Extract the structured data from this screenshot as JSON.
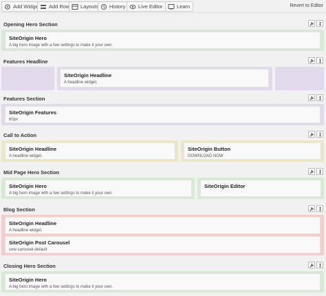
{
  "toolbar": {
    "buttons": [
      {
        "label": "Add Widget",
        "icon": "add-widget-icon"
      },
      {
        "label": "Add Row",
        "icon": "add-row-icon"
      },
      {
        "label": "Layouts",
        "icon": "layouts-icon"
      },
      {
        "label": "History",
        "icon": "history-icon"
      },
      {
        "label": "Live Editor",
        "icon": "live-editor-icon"
      },
      {
        "label": "Learn",
        "icon": "learn-icon"
      }
    ],
    "revert_label": "Revert to Editor"
  },
  "colors": {
    "green": "#d7ebd4",
    "purple": "#e2d9ec",
    "yellow": "#ece6c8",
    "red": "#f2cfcc"
  },
  "rows": [
    {
      "title": "Opening Hero Section",
      "widgets": [
        {
          "title": "SiteOrigin Hero",
          "desc": "A big hero image with a few settings to make it your own."
        }
      ]
    },
    {
      "title": "Features Headline",
      "widgets": [
        {
          "title": "SiteOrigin Headline",
          "desc": "A headline widget."
        }
      ]
    },
    {
      "title": "Features Section",
      "widgets": [
        {
          "title": "SiteOrigin Features",
          "desc": "60px"
        }
      ]
    },
    {
      "title": "Call to Action",
      "widgets": [
        {
          "title": "SiteOrigin Headline",
          "desc": "A headline widget."
        },
        {
          "title": "SiteOrigin Button",
          "desc": "DOWNLOAD NOW"
        }
      ]
    },
    {
      "title": "Mid Page Hero Section",
      "widgets": [
        {
          "title": "SiteOrigin Hero",
          "desc": "A big hero image with a few settings to make it your own."
        },
        {
          "title": "SiteOrigin Editor",
          "desc": ""
        }
      ]
    },
    {
      "title": "Blog Section",
      "widgets": [
        {
          "title": "SiteOrigin Headline",
          "desc": "A headline widget."
        },
        {
          "title": "SiteOrigin Post Carousel",
          "desc": "sow-carousel-default"
        }
      ]
    },
    {
      "title": "Closing Hero Section",
      "widgets": [
        {
          "title": "SiteOrigin Hero",
          "desc": "A big hero image with a few settings to make it your own."
        }
      ]
    }
  ]
}
